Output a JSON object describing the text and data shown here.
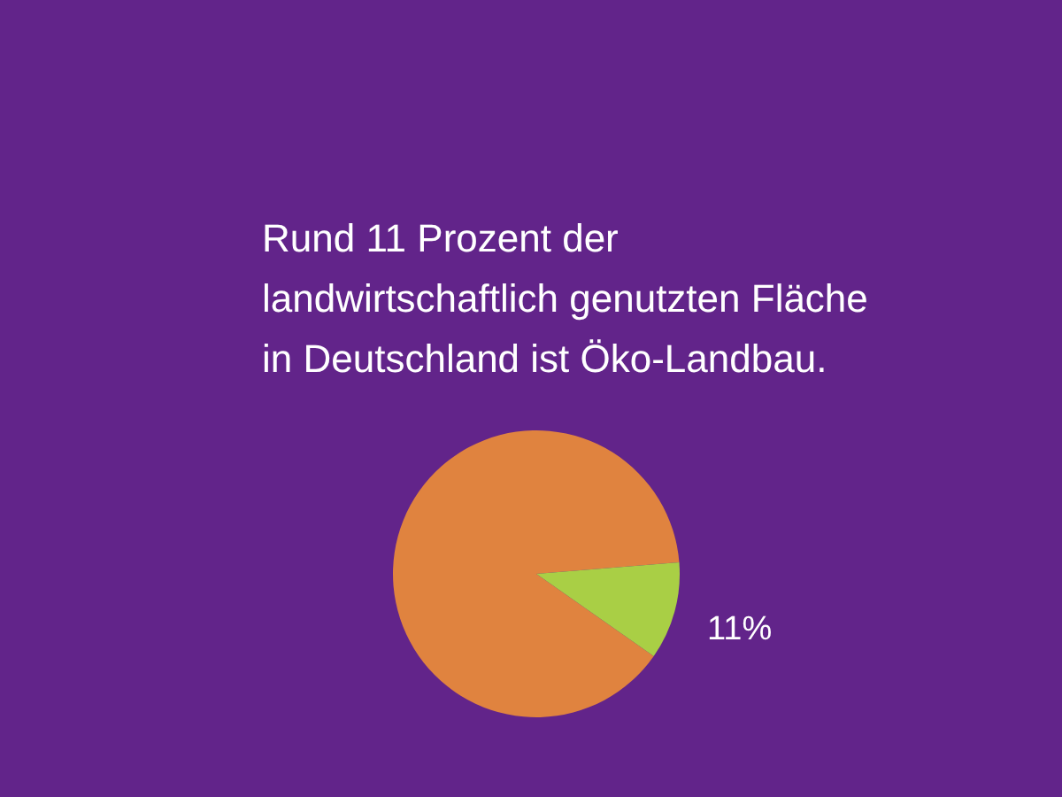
{
  "chart_data": {
    "type": "pie",
    "title": "Rund 11 Prozent der landwirtschaftlich genutzten Fläche in Deutschland ist Öko-Landbau.",
    "categories": [
      null,
      null
    ],
    "values": [
      89,
      11
    ],
    "colors": [
      "#e0833f",
      "#a9cf45"
    ],
    "value_labels": [
      null,
      "11%"
    ]
  }
}
